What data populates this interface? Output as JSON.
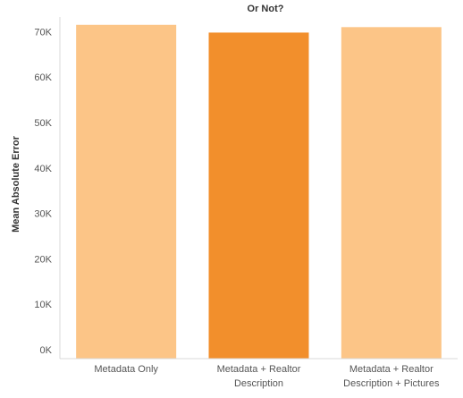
{
  "chart_data": {
    "type": "bar",
    "title": "Or Not?",
    "xlabel": "",
    "ylabel": "Mean Absolute Error",
    "categories": [
      [
        "Metadata Only"
      ],
      [
        "Metadata + Realtor",
        "Description"
      ],
      [
        "Metadata + Realtor",
        "Description + Pictures"
      ]
    ],
    "values": [
      71500,
      69800,
      71000
    ],
    "bar_colors": [
      "#fcc587",
      "#f28f2c",
      "#fcc587"
    ],
    "ylim": [
      0,
      72000
    ],
    "yticks": [
      0,
      10000,
      20000,
      30000,
      40000,
      50000,
      60000,
      70000
    ],
    "ytick_labels": [
      "0K",
      "10K",
      "20K",
      "30K",
      "40K",
      "50K",
      "60K",
      "70K"
    ],
    "grid": false,
    "legend": "none"
  }
}
